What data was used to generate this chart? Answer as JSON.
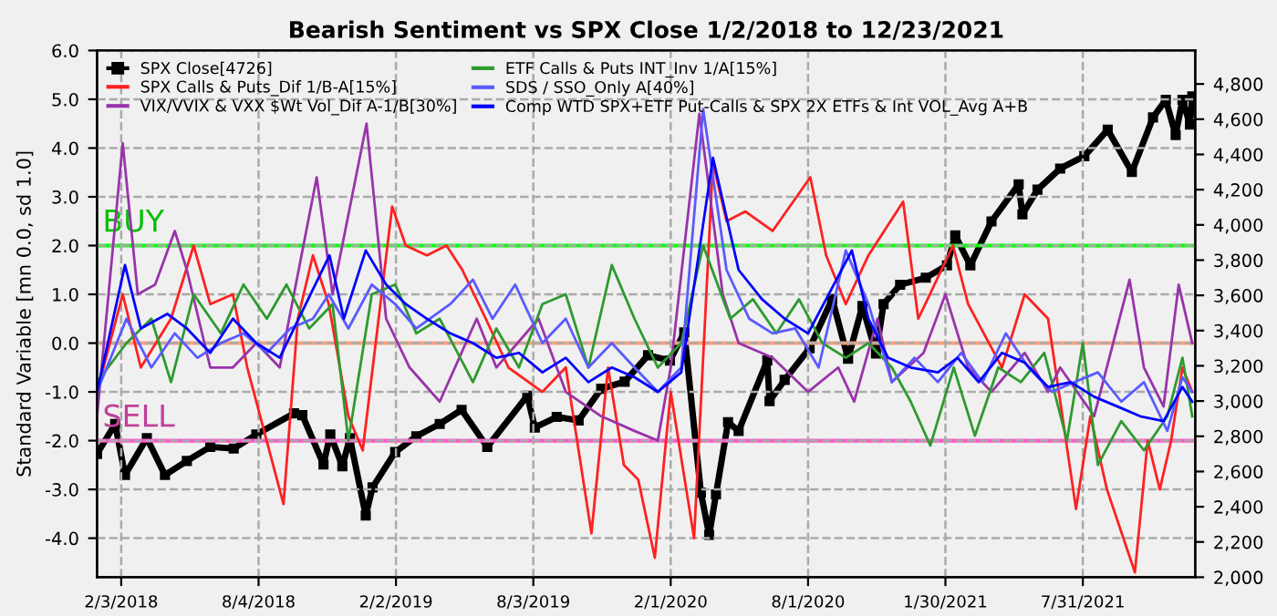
{
  "chart_data": {
    "type": "line",
    "title": "Bearish Sentiment vs SPX Close 1/2/2018 to 12/23/2021",
    "ylabel": "Standard Variable [mn 0.0, sd 1.0]",
    "xlim": [
      "2018-01-02",
      "2021-12-27"
    ],
    "xticks": [
      {
        "value": "2018-02-03",
        "label": "2/3/2018"
      },
      {
        "value": "2018-08-04",
        "label": "8/4/2018"
      },
      {
        "value": "2019-02-02",
        "label": "2/2/2019"
      },
      {
        "value": "2019-08-03",
        "label": "8/3/2019"
      },
      {
        "value": "2020-02-01",
        "label": "2/1/2020"
      },
      {
        "value": "2020-08-01",
        "label": "8/1/2020"
      },
      {
        "value": "2021-01-30",
        "label": "1/30/2021"
      },
      {
        "value": "2021-07-31",
        "label": "7/31/2021"
      }
    ],
    "ylim": [
      -4.8,
      6.0
    ],
    "yticks": [
      {
        "value": -4,
        "label": "-4.0"
      },
      {
        "value": -3,
        "label": "-3.0"
      },
      {
        "value": -2,
        "label": "-2.0"
      },
      {
        "value": -1,
        "label": "-1.0"
      },
      {
        "value": 0,
        "label": "0.0"
      },
      {
        "value": 1,
        "label": "1.0"
      },
      {
        "value": 2,
        "label": "2.0"
      },
      {
        "value": 3,
        "label": "3.0"
      },
      {
        "value": 4,
        "label": "4.0"
      },
      {
        "value": 5,
        "label": "5.0"
      },
      {
        "value": 6,
        "label": "6.0"
      }
    ],
    "y2lim": [
      2000,
      4990
    ],
    "y2ticks": [
      {
        "value": 2000,
        "label": "2,000"
      },
      {
        "value": 2200,
        "label": "2,200"
      },
      {
        "value": 2400,
        "label": "2,400"
      },
      {
        "value": 2600,
        "label": "2,600"
      },
      {
        "value": 2800,
        "label": "2,800"
      },
      {
        "value": 3000,
        "label": "3,000"
      },
      {
        "value": 3200,
        "label": "3,200"
      },
      {
        "value": 3400,
        "label": "3,400"
      },
      {
        "value": 3600,
        "label": "3,600"
      },
      {
        "value": 3800,
        "label": "3,800"
      },
      {
        "value": 4000,
        "label": "4,000"
      },
      {
        "value": 4200,
        "label": "4,200"
      },
      {
        "value": 4400,
        "label": "4,400"
      },
      {
        "value": 4600,
        "label": "4,600"
      },
      {
        "value": 4800,
        "label": "4,800"
      }
    ],
    "grid": true,
    "legend": "top left",
    "ref_lines": [
      {
        "axis": "y",
        "value": 2,
        "label": "BUY",
        "color": "#00ff00"
      },
      {
        "axis": "y",
        "value": -2,
        "label": "SELL",
        "color": "#ff55cc"
      },
      {
        "axis": "y",
        "value": 0,
        "color": "#ffa07a"
      }
    ],
    "series": [
      {
        "name": "SPX Close[4726]",
        "color": "#000000",
        "axis": "y2",
        "marker": "square",
        "x": [
          "2018-01-02",
          "2018-01-26",
          "2018-02-08",
          "2018-03-09",
          "2018-04-02",
          "2018-05-01",
          "2018-06-01",
          "2018-07-02",
          "2018-08-01",
          "2018-09-20",
          "2018-10-01",
          "2018-10-29",
          "2018-11-07",
          "2018-11-23",
          "2018-12-03",
          "2018-12-24",
          "2019-01-02",
          "2019-02-01",
          "2019-03-01",
          "2019-04-01",
          "2019-04-30",
          "2019-06-03",
          "2019-07-26",
          "2019-08-05",
          "2019-09-03",
          "2019-10-02",
          "2019-11-01",
          "2019-12-02",
          "2020-01-02",
          "2020-01-31",
          "2020-02-19",
          "2020-03-12",
          "2020-03-23",
          "2020-04-01",
          "2020-04-17",
          "2020-05-01",
          "2020-06-08",
          "2020-06-11",
          "2020-07-01",
          "2020-08-03",
          "2020-09-02",
          "2020-09-23",
          "2020-10-12",
          "2020-10-30",
          "2020-11-09",
          "2020-12-01",
          "2021-01-04",
          "2021-02-01",
          "2021-02-12",
          "2021-03-04",
          "2021-04-01",
          "2021-05-07",
          "2021-05-12",
          "2021-06-01",
          "2021-07-01",
          "2021-08-02",
          "2021-09-02",
          "2021-10-04",
          "2021-11-01",
          "2021-11-18",
          "2021-12-01",
          "2021-12-10",
          "2021-12-20",
          "2021-12-23"
        ],
        "values": [
          2700,
          2870,
          2580,
          2790,
          2580,
          2660,
          2740,
          2730,
          2810,
          2930,
          2920,
          2640,
          2810,
          2630,
          2790,
          2350,
          2510,
          2710,
          2800,
          2870,
          2950,
          2740,
          3030,
          2850,
          2910,
          2890,
          3070,
          3110,
          3260,
          3230,
          3390,
          2480,
          2240,
          2470,
          2880,
          2830,
          3230,
          3000,
          3120,
          3300,
          3580,
          3240,
          3540,
          3270,
          3550,
          3660,
          3700,
          3770,
          3940,
          3770,
          4020,
          4230,
          4060,
          4200,
          4320,
          4390,
          4540,
          4300,
          4610,
          4710,
          4510,
          4710,
          4570,
          4730
        ]
      },
      {
        "name": "SPX Calls & Puts_Dif 1/B-A[15%]",
        "color": "#ff2020",
        "x": [
          "2018-01-02",
          "2018-02-05",
          "2018-03-01",
          "2018-04-10",
          "2018-05-10",
          "2018-06-01",
          "2018-07-01",
          "2018-07-20",
          "2018-09-06",
          "2018-09-25",
          "2018-10-15",
          "2018-11-05",
          "2018-12-01",
          "2018-12-20",
          "2019-01-28",
          "2019-02-15",
          "2019-03-15",
          "2019-04-10",
          "2019-05-01",
          "2019-06-01",
          "2019-07-01",
          "2019-08-15",
          "2019-09-15",
          "2019-10-19",
          "2019-11-10",
          "2019-12-01",
          "2019-12-20",
          "2020-01-11",
          "2020-02-01",
          "2020-03-03",
          "2020-03-28",
          "2020-04-15",
          "2020-05-10",
          "2020-06-15",
          "2020-08-04",
          "2020-08-25",
          "2020-09-20",
          "2020-10-20",
          "2020-12-05",
          "2020-12-25",
          "2021-02-09",
          "2021-03-01",
          "2021-04-15",
          "2021-05-15",
          "2021-06-15",
          "2021-07-22",
          "2021-08-10",
          "2021-09-01",
          "2021-10-08",
          "2021-10-25",
          "2021-11-10",
          "2021-11-25",
          "2021-12-10",
          "2021-12-23"
        ],
        "values": [
          -1.0,
          1.0,
          -0.5,
          0.5,
          2.0,
          0.8,
          1.0,
          -0.5,
          -3.3,
          0.5,
          1.8,
          0.8,
          -1.5,
          -2.2,
          2.8,
          2.0,
          1.8,
          2.0,
          1.5,
          0.5,
          -0.5,
          -1.0,
          -0.5,
          -3.9,
          -0.5,
          -2.5,
          -2.8,
          -4.4,
          -1.0,
          -4.0,
          3.7,
          2.5,
          2.7,
          2.3,
          3.4,
          1.8,
          0.8,
          1.8,
          2.9,
          0.5,
          2.0,
          0.8,
          -0.5,
          1.0,
          0.5,
          -3.4,
          -1.5,
          -3.0,
          -4.7,
          -2.0,
          -3.0,
          -2.0,
          -0.5,
          -1.0
        ]
      },
      {
        "name": "VIX/VVIX & VXX $Wt Vol_Dif A-1/B[30%]",
        "color": "#9933aa",
        "x": [
          "2018-01-02",
          "2018-02-05",
          "2018-02-25",
          "2018-03-20",
          "2018-04-15",
          "2018-05-01",
          "2018-06-01",
          "2018-07-01",
          "2018-08-01",
          "2018-09-01",
          "2018-10-20",
          "2018-11-10",
          "2018-12-25",
          "2019-01-20",
          "2019-02-20",
          "2019-04-01",
          "2019-05-20",
          "2019-06-15",
          "2019-08-10",
          "2019-09-15",
          "2019-11-01",
          "2019-12-15",
          "2020-01-15",
          "2020-02-01",
          "2020-03-10",
          "2020-04-10",
          "2020-05-01",
          "2020-06-15",
          "2020-08-01",
          "2020-09-10",
          "2020-10-01",
          "2020-11-01",
          "2020-11-20",
          "2021-01-01",
          "2021-01-30",
          "2021-03-01",
          "2021-04-01",
          "2021-05-15",
          "2021-06-15",
          "2021-07-01",
          "2021-08-15",
          "2021-10-01",
          "2021-10-20",
          "2021-11-15",
          "2021-12-05",
          "2021-12-23"
        ],
        "values": [
          -1.5,
          4.1,
          1.0,
          1.2,
          2.3,
          1.5,
          -0.5,
          -0.5,
          0.0,
          -0.5,
          3.4,
          1.0,
          4.5,
          0.5,
          -0.5,
          -1.2,
          0.5,
          -0.5,
          0.5,
          -1.0,
          -1.5,
          -1.8,
          -2.0,
          -0.5,
          4.7,
          1.0,
          0.0,
          -0.3,
          -1.0,
          -0.5,
          -1.2,
          0.5,
          -0.8,
          -0.2,
          1.0,
          -0.5,
          -1.0,
          -0.2,
          -1.0,
          -0.5,
          -1.5,
          1.3,
          -0.5,
          -1.3,
          1.2,
          0.0
        ]
      },
      {
        "name": "ETF Calls & Puts INT_Inv 1/A[15%]",
        "color": "#2e9a2e",
        "x": [
          "2018-01-02",
          "2018-02-10",
          "2018-03-15",
          "2018-04-10",
          "2018-05-10",
          "2018-06-15",
          "2018-07-15",
          "2018-08-15",
          "2018-09-10",
          "2018-10-10",
          "2018-11-10",
          "2018-12-01",
          "2019-01-01",
          "2019-02-01",
          "2019-03-01",
          "2019-04-01",
          "2019-05-15",
          "2019-06-15",
          "2019-07-15",
          "2019-08-15",
          "2019-09-15",
          "2019-10-15",
          "2019-11-15",
          "2019-12-15",
          "2020-01-15",
          "2020-02-15",
          "2020-03-15",
          "2020-04-20",
          "2020-05-20",
          "2020-06-20",
          "2020-07-20",
          "2020-08-20",
          "2020-09-20",
          "2020-10-20",
          "2020-11-20",
          "2020-12-15",
          "2021-01-10",
          "2021-02-10",
          "2021-03-10",
          "2021-04-10",
          "2021-05-10",
          "2021-06-10",
          "2021-07-10",
          "2021-07-31",
          "2021-08-20",
          "2021-09-20",
          "2021-10-20",
          "2021-11-20",
          "2021-12-10",
          "2021-12-23"
        ],
        "values": [
          -0.8,
          0.0,
          0.5,
          -0.8,
          1.0,
          0.2,
          1.2,
          0.5,
          1.2,
          0.3,
          0.8,
          -2.0,
          1.0,
          1.2,
          0.2,
          0.5,
          -0.8,
          0.3,
          -0.5,
          0.8,
          1.0,
          -0.5,
          1.6,
          0.5,
          -0.5,
          0.0,
          2.0,
          0.5,
          0.9,
          0.2,
          0.9,
          0.0,
          -0.3,
          0.0,
          -0.5,
          -1.2,
          -2.1,
          -0.5,
          -1.9,
          -0.5,
          -0.8,
          -0.2,
          -2.0,
          0.0,
          -2.5,
          -1.6,
          -2.2,
          -1.5,
          -0.3,
          -1.5
        ]
      },
      {
        "name": "SDS / SSO_Only A[40%]",
        "color": "#5a5aff",
        "x": [
          "2018-01-02",
          "2018-02-10",
          "2018-03-15",
          "2018-04-15",
          "2018-05-15",
          "2018-06-15",
          "2018-07-15",
          "2018-08-15",
          "2018-09-15",
          "2018-10-15",
          "2018-11-05",
          "2018-12-01",
          "2019-01-01",
          "2019-02-01",
          "2019-03-01",
          "2019-04-15",
          "2019-05-15",
          "2019-06-10",
          "2019-07-10",
          "2019-08-15",
          "2019-09-15",
          "2019-10-15",
          "2019-11-15",
          "2019-12-15",
          "2020-01-15",
          "2020-02-15",
          "2020-03-15",
          "2020-04-15",
          "2020-05-15",
          "2020-06-15",
          "2020-07-15",
          "2020-08-15",
          "2020-09-20",
          "2020-10-20",
          "2020-11-20",
          "2020-12-20",
          "2021-01-20",
          "2021-02-20",
          "2021-03-20",
          "2021-04-20",
          "2021-05-20",
          "2021-06-20",
          "2021-07-20",
          "2021-08-20",
          "2021-09-20",
          "2021-10-20",
          "2021-11-20",
          "2021-12-10",
          "2021-12-23"
        ],
        "values": [
          -1.0,
          0.5,
          -0.5,
          0.2,
          -0.3,
          0.0,
          0.2,
          -0.2,
          0.3,
          0.5,
          1.0,
          0.3,
          1.2,
          0.8,
          0.3,
          0.8,
          1.3,
          0.5,
          1.2,
          0.0,
          0.5,
          -0.5,
          0.0,
          -0.5,
          -1.0,
          -0.5,
          4.8,
          1.5,
          0.5,
          0.2,
          0.3,
          -0.5,
          1.9,
          0.8,
          -0.8,
          -0.3,
          -0.8,
          -0.2,
          -0.8,
          0.2,
          -0.5,
          -1.0,
          -0.8,
          -0.6,
          -1.2,
          -0.8,
          -1.8,
          -0.7,
          -1.0
        ]
      },
      {
        "name": "Comp WTD SPX+ETF Put-Calls & SPX 2X ETFs & Int VOL_Avg A+B",
        "color": "#0000ff",
        "x": [
          "2018-01-02",
          "2018-02-08",
          "2018-03-01",
          "2018-04-05",
          "2018-05-01",
          "2018-06-01",
          "2018-07-01",
          "2018-08-01",
          "2018-09-01",
          "2018-11-06",
          "2018-11-25",
          "2018-12-24",
          "2019-01-20",
          "2019-02-15",
          "2019-03-15",
          "2019-04-15",
          "2019-05-15",
          "2019-06-15",
          "2019-07-15",
          "2019-08-15",
          "2019-09-15",
          "2019-10-15",
          "2019-11-15",
          "2019-12-15",
          "2020-01-15",
          "2020-02-15",
          "2020-03-28",
          "2020-05-01",
          "2020-06-01",
          "2020-07-01",
          "2020-08-01",
          "2020-09-28",
          "2020-10-20",
          "2020-11-15",
          "2020-12-15",
          "2021-01-20",
          "2021-02-15",
          "2021-03-15",
          "2021-04-15",
          "2021-05-15",
          "2021-06-15",
          "2021-07-15",
          "2021-08-15",
          "2021-09-15",
          "2021-10-15",
          "2021-11-15",
          "2021-12-10",
          "2021-12-23"
        ],
        "values": [
          -1.0,
          1.6,
          0.3,
          0.6,
          0.3,
          -0.2,
          0.5,
          0.0,
          -0.3,
          1.8,
          0.5,
          1.9,
          1.2,
          0.8,
          0.5,
          0.2,
          0.0,
          -0.3,
          -0.2,
          -0.6,
          -0.3,
          -0.8,
          -0.5,
          -0.7,
          -1.0,
          -0.6,
          3.8,
          1.5,
          0.9,
          0.5,
          0.2,
          1.9,
          0.5,
          -0.3,
          -0.5,
          -0.6,
          -0.3,
          -0.8,
          -0.2,
          -0.4,
          -0.9,
          -0.8,
          -1.1,
          -1.3,
          -1.5,
          -1.6,
          -0.9,
          -1.2
        ]
      }
    ]
  }
}
